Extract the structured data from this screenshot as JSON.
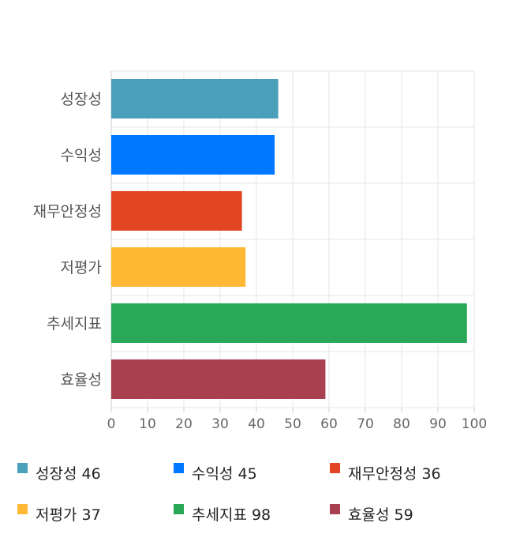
{
  "chart_data": {
    "type": "bar",
    "orientation": "horizontal",
    "categories": [
      "성장성",
      "수익성",
      "재무안정성",
      "저평가",
      "추세지표",
      "효율성"
    ],
    "values": [
      46,
      45,
      36,
      37,
      98,
      59
    ],
    "colors": [
      "#4aa0ba",
      "#0077ff",
      "#e34423",
      "#ffb833",
      "#29a857",
      "#a8404f"
    ],
    "xlim": [
      0,
      100
    ],
    "xticks": [
      "0",
      "10",
      "20",
      "30",
      "40",
      "50",
      "60",
      "70",
      "80",
      "90",
      "100"
    ],
    "grid": true,
    "legend_placement": "bottom",
    "legend": [
      "성장성 46",
      "수익성 45",
      "재무안정성 36",
      "저평가 37",
      "추세지표 98",
      "효율성 59"
    ]
  }
}
